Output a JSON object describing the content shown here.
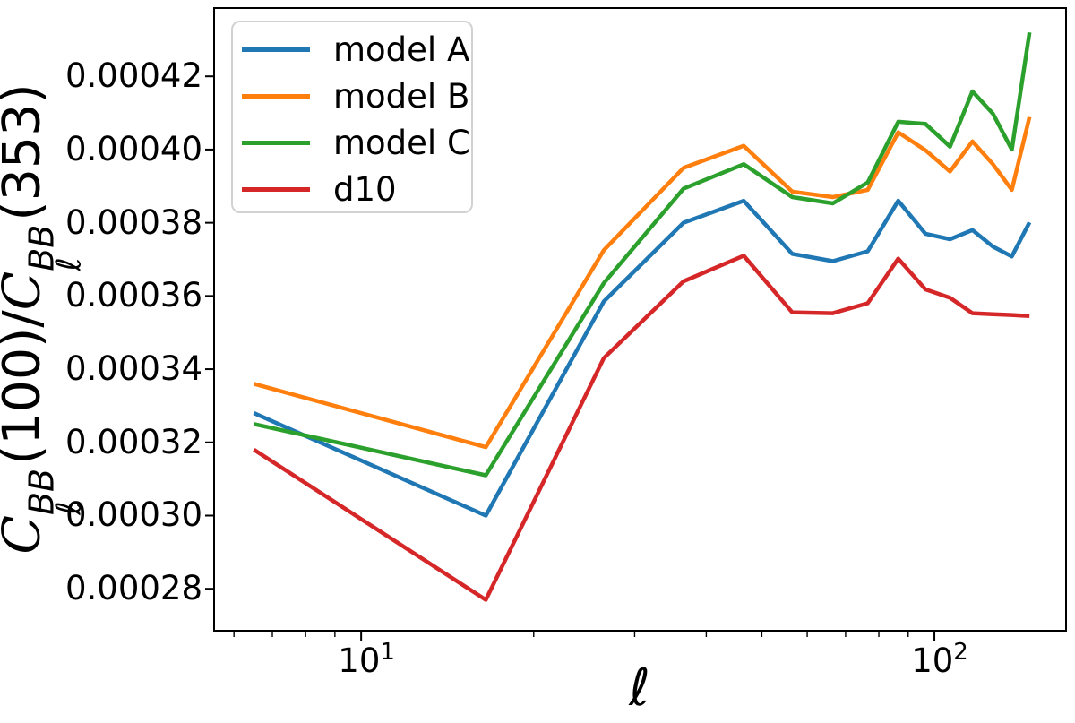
{
  "chart_data": {
    "type": "line",
    "title": "",
    "xlabel": "ℓ",
    "ylabel": "C_ℓ^BB(100)/C_ℓ^BB(353)",
    "xscale": "log",
    "yscale": "linear",
    "xlim": [
      5.52,
      170.3
    ],
    "ylim": [
      0.0002683,
      0.0004389
    ],
    "grid": false,
    "legend_position": "upper left",
    "line_width": 4.5,
    "x": [
      6.5,
      16.5,
      26.5,
      36.5,
      46.5,
      56.5,
      66.5,
      76.5,
      86.5,
      96.5,
      106.5,
      116.5,
      126.5,
      136.5,
      146.5
    ],
    "series": [
      {
        "name": "model A",
        "color": "#1f77b4",
        "values": [
          0.000328,
          0.0003,
          0.0003585,
          0.00038,
          0.000386,
          0.0003715,
          0.0003695,
          0.0003722,
          0.000386,
          0.000377,
          0.0003755,
          0.000378,
          0.0003735,
          0.0003708,
          0.0003801
        ]
      },
      {
        "name": "model B",
        "color": "#ff7f0e",
        "values": [
          0.000336,
          0.0003187,
          0.0003725,
          0.000395,
          0.000401,
          0.0003885,
          0.000387,
          0.000389,
          0.0004047,
          0.0003998,
          0.000394,
          0.0004022,
          0.000396,
          0.000389,
          0.0004089
        ]
      },
      {
        "name": "model C",
        "color": "#2ca02c",
        "values": [
          0.000325,
          0.000311,
          0.0003635,
          0.0003893,
          0.000396,
          0.000387,
          0.0003853,
          0.000391,
          0.0004076,
          0.000407,
          0.0004008,
          0.0004159,
          0.0004098,
          0.0004,
          0.000432
        ]
      },
      {
        "name": "d10",
        "color": "#d62728",
        "values": [
          0.000318,
          0.000277,
          0.000343,
          0.000364,
          0.000371,
          0.0003555,
          0.0003553,
          0.000358,
          0.0003702,
          0.0003618,
          0.0003595,
          0.0003553,
          0.000355,
          0.0003548,
          0.0003545
        ]
      }
    ]
  },
  "axes": {
    "x": {
      "major_ticks": [
        {
          "value": 10,
          "base": "10",
          "exp": "1"
        },
        {
          "value": 100,
          "base": "10",
          "exp": "2"
        }
      ],
      "minor_ticks": [
        6,
        7,
        8,
        9,
        20,
        30,
        40,
        50,
        60,
        70,
        80,
        90
      ]
    },
    "y": {
      "ticks": [
        {
          "value": 0.00028,
          "label": "0.00028"
        },
        {
          "value": 0.0003,
          "label": "0.00030"
        },
        {
          "value": 0.00032,
          "label": "0.00032"
        },
        {
          "value": 0.00034,
          "label": "0.00034"
        },
        {
          "value": 0.00036,
          "label": "0.00036"
        },
        {
          "value": 0.00038,
          "label": "0.00038"
        },
        {
          "value": 0.0004,
          "label": "0.00040"
        },
        {
          "value": 0.00042,
          "label": "0.00042"
        }
      ]
    }
  },
  "labels": {
    "xlabel": "ℓ",
    "ylabel": {
      "c1": "C",
      "sup1": "BB",
      "sub1": "ℓ",
      "arg1": "(100)",
      "slash": "/",
      "c2": "C",
      "sup2": "BB",
      "sub2": "ℓ",
      "arg2": "(353)"
    }
  },
  "legend": {
    "entries": [
      {
        "label": "model A",
        "color": "#1f77b4"
      },
      {
        "label": "model B",
        "color": "#ff7f0e"
      },
      {
        "label": "model C",
        "color": "#2ca02c"
      },
      {
        "label": "d10",
        "color": "#d62728"
      }
    ]
  },
  "style": {
    "spine_color": "#000000",
    "background": "#ffffff",
    "legend_border_color": "#d2d2d2"
  }
}
